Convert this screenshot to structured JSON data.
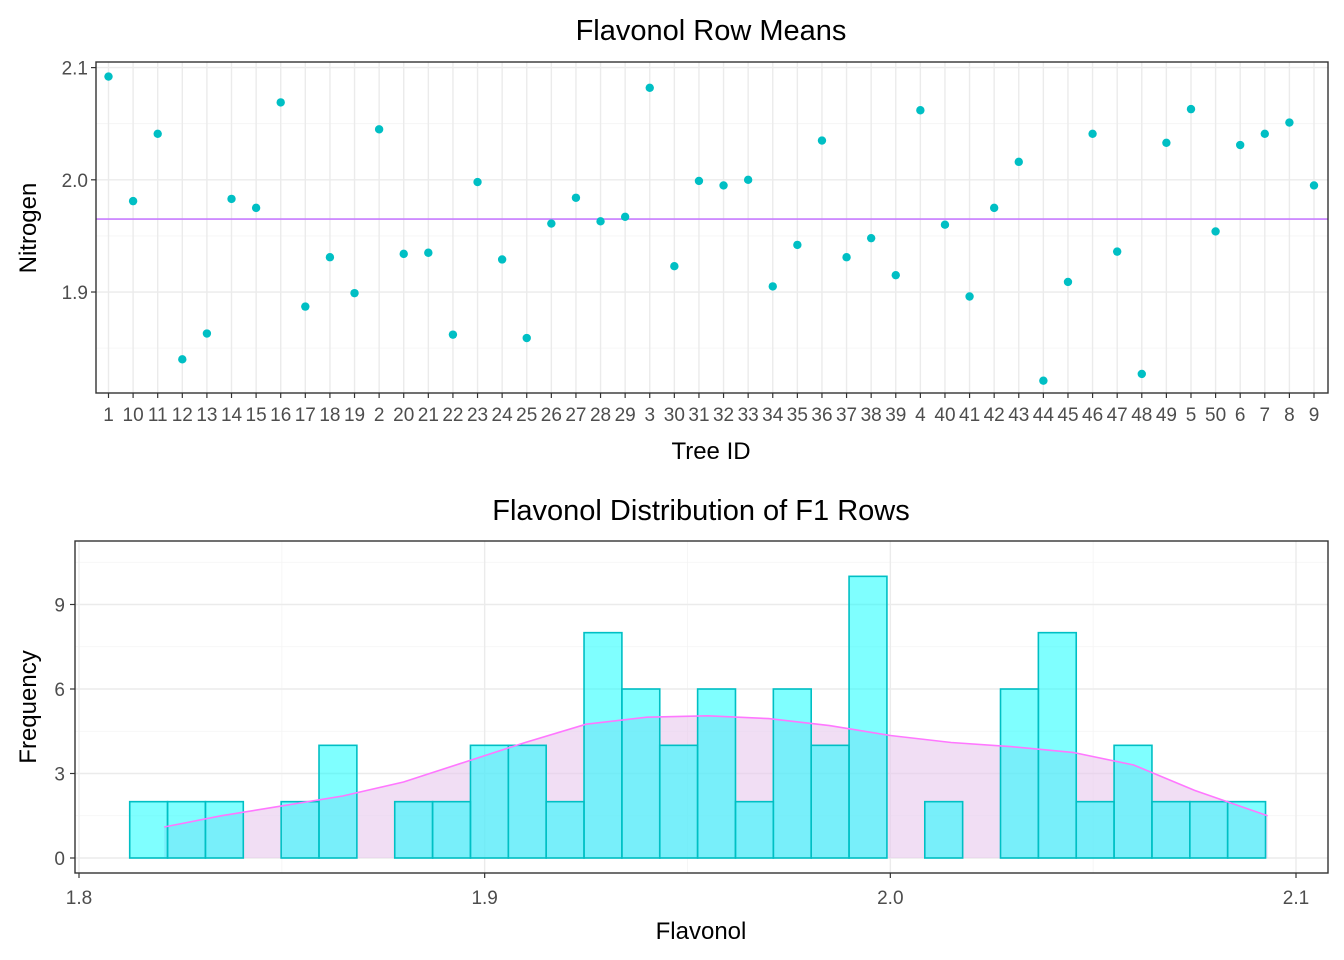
{
  "chart_data": [
    {
      "type": "scatter",
      "title": "Flavonol Row Means",
      "xlabel": "Tree ID",
      "ylabel": "Nitrogen",
      "ylim": [
        1.81,
        2.105
      ],
      "yticks": [
        1.9,
        2.0,
        2.1
      ],
      "ytick_labels": [
        "1.9",
        "2.0",
        "2.1"
      ],
      "grid": true,
      "point_color": "#00BFC4",
      "hline": {
        "value": 1.965,
        "color": "#C77CFF"
      },
      "categories": [
        "1",
        "10",
        "11",
        "12",
        "13",
        "14",
        "15",
        "16",
        "17",
        "18",
        "19",
        "2",
        "20",
        "21",
        "22",
        "23",
        "24",
        "25",
        "26",
        "27",
        "28",
        "29",
        "3",
        "30",
        "31",
        "32",
        "33",
        "34",
        "35",
        "36",
        "37",
        "38",
        "39",
        "4",
        "40",
        "41",
        "42",
        "43",
        "44",
        "45",
        "46",
        "47",
        "48",
        "49",
        "5",
        "50",
        "6",
        "7",
        "8",
        "9"
      ],
      "values": [
        2.092,
        1.981,
        2.041,
        1.84,
        1.863,
        1.983,
        1.975,
        2.069,
        1.887,
        1.931,
        1.899,
        2.045,
        1.934,
        1.935,
        1.862,
        1.998,
        1.929,
        1.859,
        1.961,
        1.984,
        1.963,
        1.967,
        2.082,
        1.923,
        1.999,
        1.995,
        2.0,
        1.905,
        1.942,
        2.035,
        1.931,
        1.948,
        1.915,
        2.062,
        1.96,
        1.896,
        1.975,
        2.016,
        1.821,
        1.909,
        2.041,
        1.936,
        1.827,
        2.033,
        2.063,
        1.954,
        2.031,
        2.041,
        2.051,
        1.995
      ]
    },
    {
      "type": "bar",
      "title": "Flavonol Distribution of F1 Rows",
      "xlabel": "Flavonol",
      "ylabel": "Frequency",
      "xlim": [
        1.8,
        2.1
      ],
      "xticks": [
        1.8,
        1.9,
        2.0,
        2.1
      ],
      "xtick_labels": [
        "1.8",
        "1.9",
        "2.0",
        "2.1"
      ],
      "ylim": [
        0,
        11
      ],
      "yticks": [
        0,
        3,
        6,
        9
      ],
      "ytick_labels": [
        "0",
        "3",
        "6",
        "9"
      ],
      "grid": true,
      "bar_fill": "#00FFFF",
      "bar_outline": "#00BFC4",
      "density_color": "#FF77FF",
      "density_fill": "#E8C8EC",
      "bins": {
        "start": 1.8125,
        "width": 0.009333,
        "counts": [
          2,
          2,
          2,
          0,
          2,
          4,
          0,
          2,
          2,
          4,
          4,
          2,
          8,
          6,
          4,
          6,
          2,
          6,
          4,
          10,
          0,
          2,
          0,
          6,
          8,
          2,
          4,
          2,
          2,
          2
        ]
      },
      "density": {
        "x": [
          1.821,
          1.835,
          1.85,
          1.865,
          1.88,
          1.895,
          1.91,
          1.925,
          1.94,
          1.955,
          1.97,
          1.985,
          2.0,
          2.015,
          2.03,
          2.045,
          2.06,
          2.075,
          2.093
        ],
        "y": [
          1.1,
          1.5,
          1.85,
          2.2,
          2.7,
          3.4,
          4.1,
          4.75,
          5.0,
          5.05,
          4.95,
          4.7,
          4.35,
          4.1,
          3.95,
          3.75,
          3.3,
          2.4,
          1.5
        ]
      }
    }
  ]
}
